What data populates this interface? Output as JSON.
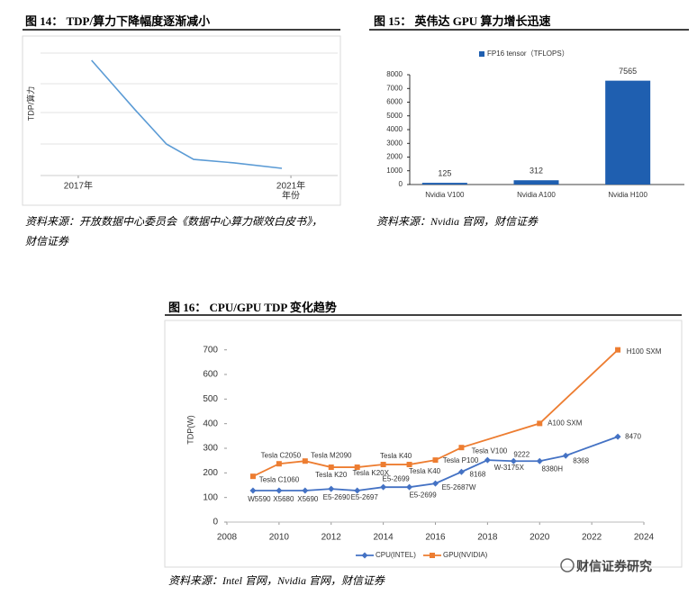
{
  "chart_data": [
    {
      "type": "line",
      "title": "图 14： TDP/算力下降幅度逐渐减小",
      "source": "资料来源：开放数据中心委员会《数据中心算力碳效白皮书》，财信证券",
      "ylabel": "TDP/算力",
      "xlabel": "年份",
      "x": [
        2017.25,
        2018.07,
        2018.66,
        2019.17,
        2019.93,
        2020.83
      ],
      "series": [
        {
          "color": "#5b9bd5",
          "values": [
            4.0,
            2.28,
            1.09,
            0.56,
            0.44,
            0.25
          ]
        }
      ],
      "xlim": [
        2016.29,
        2021.88
      ],
      "ylim": [
        0,
        5
      ],
      "xticks": [
        {
          "value": 2017,
          "label": "2017年"
        },
        {
          "value": 2021,
          "label": "2021年"
        }
      ]
    },
    {
      "type": "bar",
      "title": "图 15： 英伟达 GPU 算力增长迅速",
      "source": "资料来源：Nvidia 官网，财信证券",
      "categories": [
        "Nvidia V100",
        "Nvidia A100",
        "Nvidia H100"
      ],
      "series": [
        {
          "name": "FP16 tensor（TFLOPS）",
          "color": "#1f5fb0",
          "values": [
            125,
            312,
            7565
          ]
        }
      ],
      "ylim": [
        0,
        8000
      ],
      "yticks": [
        0,
        1000,
        2000,
        3000,
        4000,
        5000,
        6000,
        7000,
        8000
      ]
    },
    {
      "type": "line",
      "title": "图 16： CPU/GPU TDP 变化趋势",
      "source": "资料来源：Intel 官网，Nvidia 官网，财信证券",
      "ylabel": "TDP(W)",
      "series": [
        {
          "name": "CPU(INTEL)",
          "color": "#4472c4",
          "marker": "diamond",
          "x": [
            2009,
            2010,
            2011,
            2012,
            2013,
            2014,
            2015,
            2016,
            2017,
            2018,
            2019,
            2020,
            2021,
            2023
          ],
          "values": [
            128,
            128,
            128,
            135,
            128,
            142,
            142,
            157,
            204,
            252,
            248,
            248,
            270,
            347
          ],
          "labels": [
            "W5590",
            "X5680",
            "X5690",
            "E5-2690",
            "E5-2697",
            "E5-2699",
            "E5-2699",
            "E5-2687W",
            "8168",
            "W-3175X",
            "9222",
            "8380H",
            "8368",
            "8470"
          ]
        },
        {
          "name": "GPU(NVIDIA)",
          "color": "#ed7d31",
          "marker": "square",
          "x": [
            2009,
            2010,
            2011,
            2012,
            2013,
            2014,
            2015,
            2016,
            2017,
            2020,
            2023
          ],
          "values": [
            186,
            237,
            248,
            223,
            223,
            234,
            234,
            252,
            303,
            401,
            700
          ],
          "labels": [
            "Tesla C1060",
            "Tesla C2050",
            "Tesla M2090",
            "Tesla K20",
            "Tesla K20X",
            "Tesla K40",
            "Tesla K40",
            "Tesla P100",
            "Tesla V100",
            "A100 SXM",
            "H100 SXM"
          ]
        }
      ],
      "xlim": [
        2008,
        2024
      ],
      "xticks": [
        2008,
        2010,
        2012,
        2014,
        2016,
        2018,
        2020,
        2022,
        2024
      ],
      "ylim": [
        0,
        750
      ],
      "yticks": [
        0,
        100,
        200,
        300,
        400,
        500,
        600,
        700
      ]
    }
  ],
  "watermark": "财信证券研究"
}
